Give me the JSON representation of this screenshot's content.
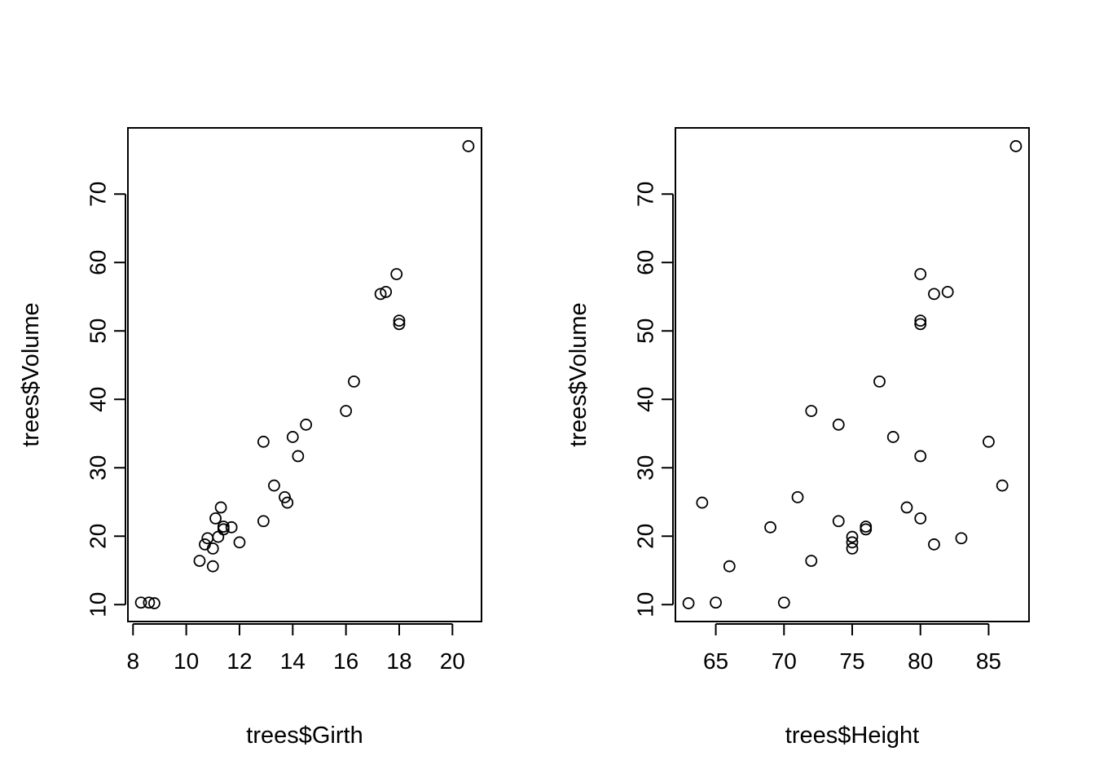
{
  "chart_data": [
    {
      "type": "scatter",
      "title": "",
      "xlabel": "trees$Girth",
      "ylabel": "trees$Volume",
      "xlim": [
        8.3,
        20.6
      ],
      "ylim": [
        10.2,
        77.0
      ],
      "x_ticks": [
        8,
        10,
        12,
        14,
        16,
        18,
        20
      ],
      "y_ticks": [
        10,
        20,
        30,
        40,
        50,
        60,
        70
      ],
      "grid": false,
      "points": [
        {
          "x": 8.3,
          "y": 10.3
        },
        {
          "x": 8.6,
          "y": 10.3
        },
        {
          "x": 8.8,
          "y": 10.2
        },
        {
          "x": 10.5,
          "y": 16.4
        },
        {
          "x": 10.7,
          "y": 18.8
        },
        {
          "x": 10.8,
          "y": 19.7
        },
        {
          "x": 11.0,
          "y": 15.6
        },
        {
          "x": 11.0,
          "y": 18.2
        },
        {
          "x": 11.1,
          "y": 22.6
        },
        {
          "x": 11.2,
          "y": 19.9
        },
        {
          "x": 11.3,
          "y": 24.2
        },
        {
          "x": 11.4,
          "y": 21.0
        },
        {
          "x": 11.4,
          "y": 21.4
        },
        {
          "x": 11.7,
          "y": 21.3
        },
        {
          "x": 12.0,
          "y": 19.1
        },
        {
          "x": 12.9,
          "y": 22.2
        },
        {
          "x": 12.9,
          "y": 33.8
        },
        {
          "x": 13.3,
          "y": 27.4
        },
        {
          "x": 13.7,
          "y": 25.7
        },
        {
          "x": 13.8,
          "y": 24.9
        },
        {
          "x": 14.0,
          "y": 34.5
        },
        {
          "x": 14.2,
          "y": 31.7
        },
        {
          "x": 14.5,
          "y": 36.3
        },
        {
          "x": 16.0,
          "y": 38.3
        },
        {
          "x": 16.3,
          "y": 42.6
        },
        {
          "x": 17.3,
          "y": 55.4
        },
        {
          "x": 17.5,
          "y": 55.7
        },
        {
          "x": 17.9,
          "y": 58.3
        },
        {
          "x": 18.0,
          "y": 51.5
        },
        {
          "x": 18.0,
          "y": 51.0
        },
        {
          "x": 20.6,
          "y": 77.0
        }
      ]
    },
    {
      "type": "scatter",
      "title": "",
      "xlabel": "trees$Height",
      "ylabel": "trees$Volume",
      "xlim": [
        63,
        87
      ],
      "ylim": [
        10.2,
        77.0
      ],
      "x_ticks": [
        65,
        70,
        75,
        80,
        85
      ],
      "y_ticks": [
        10,
        20,
        30,
        40,
        50,
        60,
        70
      ],
      "grid": false,
      "points": [
        {
          "x": 70,
          "y": 10.3
        },
        {
          "x": 65,
          "y": 10.3
        },
        {
          "x": 63,
          "y": 10.2
        },
        {
          "x": 72,
          "y": 16.4
        },
        {
          "x": 81,
          "y": 18.8
        },
        {
          "x": 83,
          "y": 19.7
        },
        {
          "x": 66,
          "y": 15.6
        },
        {
          "x": 75,
          "y": 18.2
        },
        {
          "x": 80,
          "y": 22.6
        },
        {
          "x": 75,
          "y": 19.9
        },
        {
          "x": 79,
          "y": 24.2
        },
        {
          "x": 76,
          "y": 21.0
        },
        {
          "x": 76,
          "y": 21.4
        },
        {
          "x": 69,
          "y": 21.3
        },
        {
          "x": 75,
          "y": 19.1
        },
        {
          "x": 74,
          "y": 22.2
        },
        {
          "x": 85,
          "y": 33.8
        },
        {
          "x": 86,
          "y": 27.4
        },
        {
          "x": 71,
          "y": 25.7
        },
        {
          "x": 64,
          "y": 24.9
        },
        {
          "x": 78,
          "y": 34.5
        },
        {
          "x": 80,
          "y": 31.7
        },
        {
          "x": 74,
          "y": 36.3
        },
        {
          "x": 72,
          "y": 38.3
        },
        {
          "x": 77,
          "y": 42.6
        },
        {
          "x": 81,
          "y": 55.4
        },
        {
          "x": 82,
          "y": 55.7
        },
        {
          "x": 80,
          "y": 58.3
        },
        {
          "x": 80,
          "y": 51.5
        },
        {
          "x": 80,
          "y": 51.0
        },
        {
          "x": 87,
          "y": 77.0
        }
      ]
    }
  ]
}
